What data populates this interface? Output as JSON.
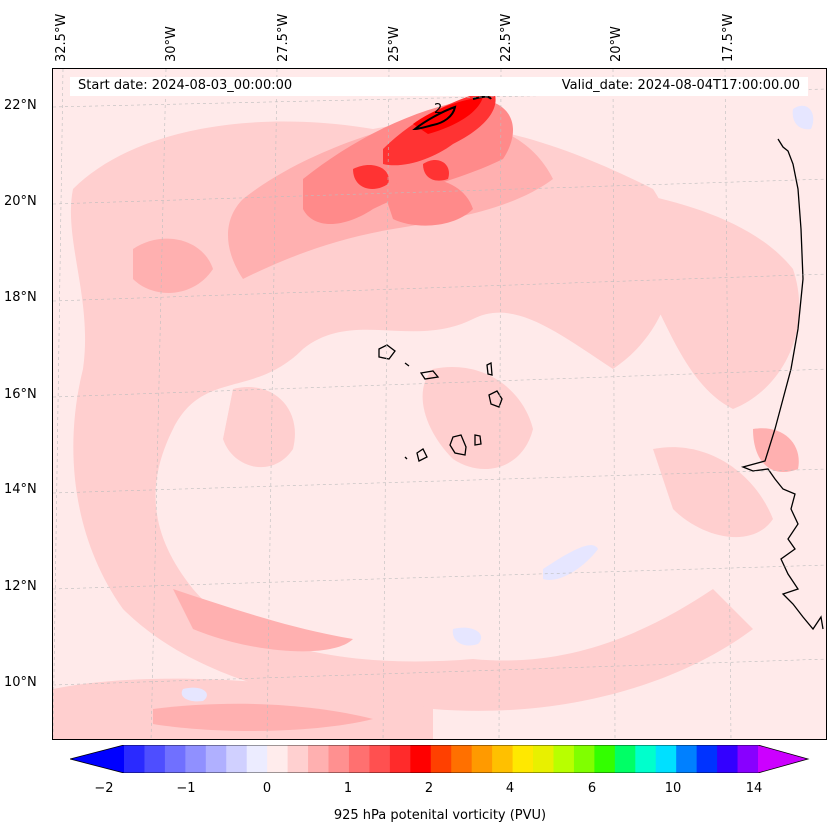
{
  "map": {
    "start_date": "Start date: 2024-08-03_00:00:00",
    "valid_date": "Valid_date: 2024-08-04T17:00:00.00",
    "lon_labels": [
      "32.5°W",
      "30°W",
      "27.5°W",
      "25°W",
      "22.5°W",
      "20°W",
      "17.5°W"
    ],
    "lat_labels": [
      "22°N",
      "20°N",
      "18°N",
      "16°N",
      "14°N",
      "12°N",
      "10°N"
    ],
    "contour_label": "2",
    "colors": {
      "background": "#ffeaea",
      "light_pink": "#ffcfcf",
      "pink": "#ffb0b0",
      "salmon": "#ff8a8a",
      "red": "#ff3333",
      "deep_red": "#ff0000",
      "light_blue": "#e6e6ff",
      "blue": "#c8c8ff",
      "coast": "#000000"
    }
  },
  "colorbar": {
    "title": "925 hPa potenital vorticity (PVU)",
    "tick_labels": [
      "−2",
      "−1",
      "0",
      "1",
      "2",
      "4",
      "6",
      "10",
      "14"
    ],
    "colors": [
      "#0000ff",
      "#2a2aff",
      "#4e4eff",
      "#7070ff",
      "#9090ff",
      "#b0b0ff",
      "#d0d0ff",
      "#ececff",
      "#ffecec",
      "#ffd0d0",
      "#ffb0b0",
      "#ff9090",
      "#ff7070",
      "#ff5050",
      "#ff2b2b",
      "#ff0000",
      "#ff4000",
      "#ff7000",
      "#ff9a00",
      "#ffc000",
      "#ffe800",
      "#e8f000",
      "#b8ff00",
      "#80ff00",
      "#33ff00",
      "#00ff66",
      "#00ffcc",
      "#00e0ff",
      "#0080ff",
      "#0033ff",
      "#3300ff",
      "#8800ff",
      "#cc00ff"
    ]
  }
}
